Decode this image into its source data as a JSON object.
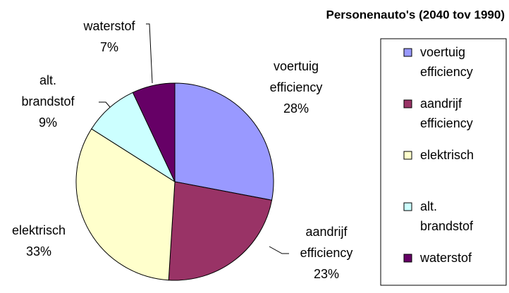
{
  "chart_data": {
    "type": "pie",
    "title": "Personenauto's (2040 tov 1990)",
    "categories": [
      "voertuig efficiency",
      "aandrijf efficiency",
      "elektrisch",
      "alt. brandstof",
      "waterstof"
    ],
    "values": [
      28,
      23,
      33,
      9,
      7
    ],
    "value_labels": [
      "28%",
      "23%",
      "33%",
      "9%",
      "7%"
    ],
    "colors": [
      "#9999ff",
      "#993366",
      "#ffffcc",
      "#ccffff",
      "#660066"
    ],
    "legend": "right"
  }
}
